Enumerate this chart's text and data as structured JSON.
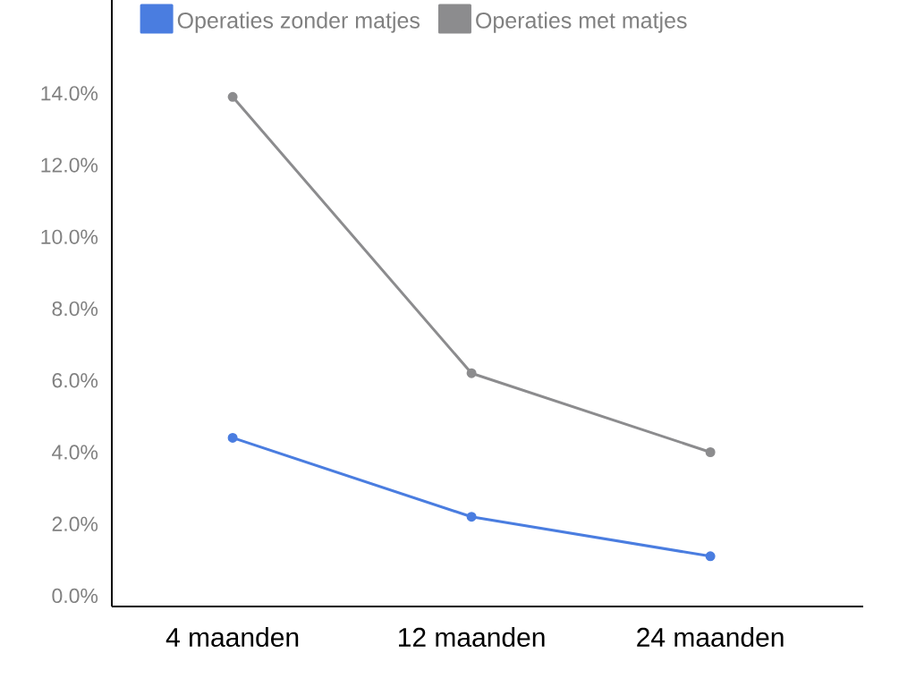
{
  "chart_data": {
    "type": "line",
    "categories": [
      "4 maanden",
      "12 maanden",
      "24 maanden"
    ],
    "series": [
      {
        "name": "Operaties zonder matjes",
        "color": "#4a7de0",
        "values": [
          4.4,
          2.2,
          1.1
        ]
      },
      {
        "name": "Operaties met matjes",
        "color": "#8c8c8e",
        "values": [
          13.9,
          6.2,
          4.0
        ]
      }
    ],
    "ylim": [
      -0.3,
      16.6
    ],
    "yticks": [
      {
        "value": 0,
        "label": "0.0%"
      },
      {
        "value": 2,
        "label": "2.0%"
      },
      {
        "value": 4,
        "label": "4.0%"
      },
      {
        "value": 6,
        "label": "6.0%"
      },
      {
        "value": 8,
        "label": "8.0%"
      },
      {
        "value": 10,
        "label": "10.0%"
      },
      {
        "value": 12,
        "label": "12.0%"
      },
      {
        "value": 14,
        "label": "14.0%"
      }
    ],
    "legend": "top left",
    "marker": "circle",
    "line_style": "solid"
  }
}
